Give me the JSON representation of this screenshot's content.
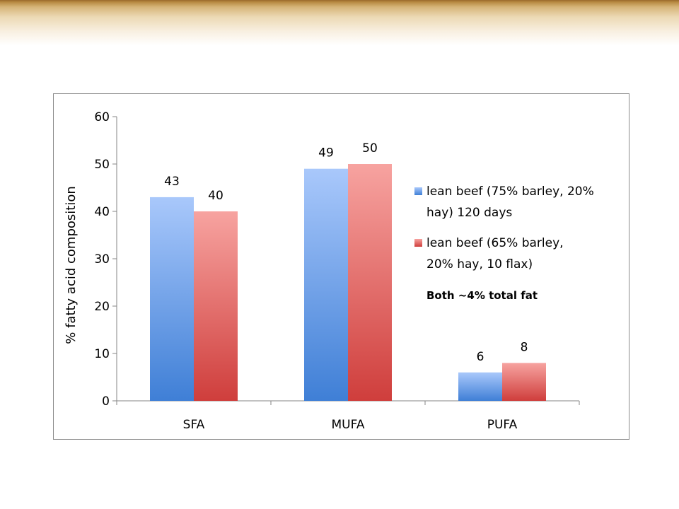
{
  "chart_data": {
    "type": "bar",
    "categories": [
      "SFA",
      "MUFA",
      "PUFA"
    ],
    "series": [
      {
        "name": "lean beef (75% barley, 20% hay) 120 days",
        "values": [
          43,
          49,
          6
        ]
      },
      {
        "name": "lean beef (65% barley, 20% hay, 10 flax)",
        "values": [
          40,
          50,
          8
        ]
      }
    ],
    "ylabel": "% fatty acid composition",
    "ylim": [
      0,
      60
    ],
    "yticks": [
      0,
      10,
      20,
      30,
      40,
      50,
      60
    ],
    "grid": false,
    "legend_position": "right",
    "annotation": "Both ~4% total fat"
  },
  "colors": {
    "series1_top": "#a9c8fb",
    "series1_bottom": "#3f7fd6",
    "series2_top": "#f7a3a0",
    "series2_bottom": "#cf3e3c"
  }
}
